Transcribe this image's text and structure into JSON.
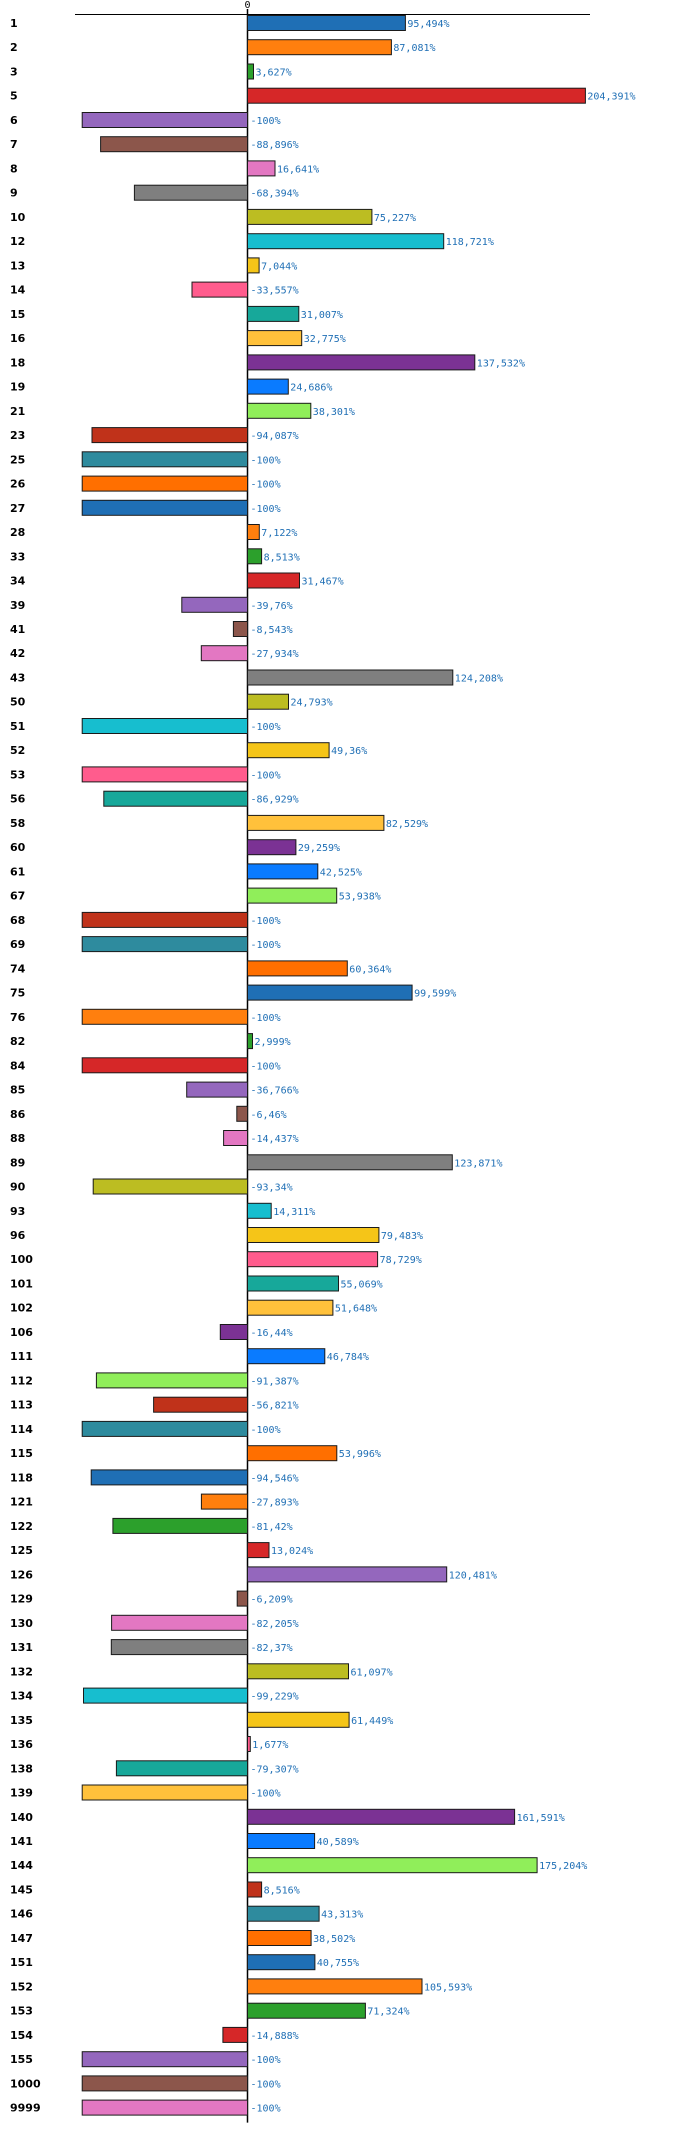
{
  "chart_data": {
    "type": "bar",
    "orientation": "horizontal",
    "title": "",
    "xlabel": "",
    "ylabel": "",
    "zero_tick_label": "0",
    "value_suffix": "%",
    "decimal_separator": ",",
    "grid": false,
    "legend": "none",
    "highlight_color": "#e8101a",
    "palette": [
      "#1f6fb5",
      "#ff7f0e",
      "#2ca02c",
      "#d62728",
      "#9467bd",
      "#8c564b",
      "#e377c2",
      "#7f7f7f",
      "#bcbd22",
      "#17becf",
      "#f5c518",
      "#ff5c8d",
      "#17a89a",
      "#ffc13b",
      "#7b3294",
      "#0a7bff",
      "#90ee5a",
      "#c0321a",
      "#2e8b9e",
      "#ff6f00"
    ],
    "categories": [
      {
        "label": "1",
        "value": 95.494,
        "color": "#1f6fb5"
      },
      {
        "label": "2",
        "value": 87.081,
        "color": "#ff7f0e"
      },
      {
        "label": "3",
        "value": 3.627,
        "color": "#2ca02c"
      },
      {
        "label": "5",
        "value": 204.391,
        "color": "#d62728"
      },
      {
        "label": "6",
        "value": -100,
        "color": "#9467bd"
      },
      {
        "label": "7",
        "value": -88.896,
        "color": "#8c564b"
      },
      {
        "label": "8",
        "value": 16.641,
        "color": "#e377c2"
      },
      {
        "label": "9",
        "value": -68.394,
        "color": "#7f7f7f"
      },
      {
        "label": "10",
        "value": 75.227,
        "color": "#bcbd22"
      },
      {
        "label": "12",
        "value": 118.721,
        "color": "#17becf"
      },
      {
        "label": "13",
        "value": 7.044,
        "color": "#f5c518"
      },
      {
        "label": "14",
        "value": -33.557,
        "color": "#ff5c8d"
      },
      {
        "label": "15",
        "value": 31.007,
        "color": "#17a89a"
      },
      {
        "label": "16",
        "value": 32.775,
        "color": "#ffc13b"
      },
      {
        "label": "18",
        "value": 137.532,
        "color": "#7b3294"
      },
      {
        "label": "19",
        "value": 24.686,
        "color": "#0a7bff"
      },
      {
        "label": "21",
        "value": 38.301,
        "color": "#90ee5a"
      },
      {
        "label": "23",
        "value": -94.087,
        "color": "#c0321a"
      },
      {
        "label": "25",
        "value": -100,
        "color": "#2e8b9e"
      },
      {
        "label": "26",
        "value": -100,
        "color": "#ff6f00"
      },
      {
        "label": "27",
        "value": -100,
        "color": "#1f6fb5"
      },
      {
        "label": "28",
        "value": 7.122,
        "color": "#ff7f0e"
      },
      {
        "label": "33",
        "value": 8.513,
        "color": "#2ca02c"
      },
      {
        "label": "34",
        "value": 31.467,
        "color": "#d62728"
      },
      {
        "label": "39",
        "value": -39.76,
        "color": "#9467bd"
      },
      {
        "label": "41",
        "value": -8.543,
        "color": "#8c564b"
      },
      {
        "label": "42",
        "value": -27.934,
        "color": "#e377c2"
      },
      {
        "label": "43",
        "value": 124.208,
        "color": "#7f7f7f"
      },
      {
        "label": "50",
        "value": 24.793,
        "color": "#bcbd22"
      },
      {
        "label": "51",
        "value": -100,
        "color": "#17becf"
      },
      {
        "label": "52",
        "value": 49.36,
        "color": "#f5c518"
      },
      {
        "label": "53",
        "value": -100,
        "color": "#ff5c8d"
      },
      {
        "label": "56",
        "value": -86.929,
        "color": "#17a89a"
      },
      {
        "label": "58",
        "value": 82.529,
        "color": "#ffc13b"
      },
      {
        "label": "60",
        "value": 29.259,
        "color": "#7b3294"
      },
      {
        "label": "61",
        "value": 42.525,
        "color": "#0a7bff"
      },
      {
        "label": "67",
        "value": 53.938,
        "color": "#90ee5a"
      },
      {
        "label": "68",
        "value": -100,
        "color": "#c0321a"
      },
      {
        "label": "69",
        "value": -100,
        "color": "#2e8b9e"
      },
      {
        "label": "74",
        "value": 60.364,
        "color": "#ff6f00"
      },
      {
        "label": "75",
        "value": 99.599,
        "color": "#1f6fb5"
      },
      {
        "label": "76",
        "value": -100,
        "color": "#ff7f0e"
      },
      {
        "label": "82",
        "value": 2.999,
        "color": "#2ca02c"
      },
      {
        "label": "84",
        "value": -100,
        "color": "#d62728"
      },
      {
        "label": "85",
        "value": -36.766,
        "color": "#9467bd"
      },
      {
        "label": "86",
        "value": -6.46,
        "color": "#8c564b"
      },
      {
        "label": "88",
        "value": -14.437,
        "color": "#e377c2"
      },
      {
        "label": "89",
        "value": 123.871,
        "color": "#7f7f7f"
      },
      {
        "label": "90",
        "value": -93.34,
        "color": "#bcbd22"
      },
      {
        "label": "93",
        "value": 14.311,
        "color": "#17becf"
      },
      {
        "label": "96",
        "value": 79.483,
        "color": "#f5c518"
      },
      {
        "label": "100",
        "value": 78.729,
        "color": "#ff5c8d"
      },
      {
        "label": "101",
        "value": 55.069,
        "color": "#17a89a"
      },
      {
        "label": "102",
        "value": 51.648,
        "color": "#ffc13b"
      },
      {
        "label": "106",
        "value": -16.44,
        "color": "#7b3294"
      },
      {
        "label": "111",
        "value": 46.784,
        "color": "#0a7bff"
      },
      {
        "label": "112",
        "value": -91.387,
        "color": "#90ee5a"
      },
      {
        "label": "113",
        "value": -56.821,
        "color": "#c0321a"
      },
      {
        "label": "114",
        "value": -100,
        "color": "#2e8b9e"
      },
      {
        "label": "115",
        "value": 53.996,
        "color": "#ff6f00"
      },
      {
        "label": "118",
        "value": -94.546,
        "color": "#1f6fb5"
      },
      {
        "label": "121",
        "value": -27.893,
        "color": "#ff7f0e"
      },
      {
        "label": "122",
        "value": -81.42,
        "color": "#2ca02c"
      },
      {
        "label": "125",
        "value": 13.024,
        "color": "#d62728"
      },
      {
        "label": "126",
        "value": 120.481,
        "color": "#9467bd"
      },
      {
        "label": "129",
        "value": -6.209,
        "color": "#8c564b"
      },
      {
        "label": "130",
        "value": -82.205,
        "color": "#e377c2"
      },
      {
        "label": "131",
        "value": -82.37,
        "color": "#7f7f7f"
      },
      {
        "label": "132",
        "value": 61.097,
        "color": "#bcbd22"
      },
      {
        "label": "134",
        "value": -99.229,
        "color": "#17becf"
      },
      {
        "label": "135",
        "value": 61.449,
        "color": "#f5c518"
      },
      {
        "label": "136",
        "value": 1.677,
        "color": "#ff5c8d"
      },
      {
        "label": "138",
        "value": -79.307,
        "color": "#17a89a"
      },
      {
        "label": "139",
        "value": -100,
        "color": "#ffc13b"
      },
      {
        "label": "140",
        "value": 161.591,
        "color": "#7b3294"
      },
      {
        "label": "141",
        "value": 40.589,
        "color": "#0a7bff"
      },
      {
        "label": "144",
        "value": 175.204,
        "color": "#90ee5a"
      },
      {
        "label": "145",
        "value": 8.516,
        "color": "#c0321a",
        "highlight": true
      },
      {
        "label": "146",
        "value": 43.313,
        "color": "#2e8b9e"
      },
      {
        "label": "147",
        "value": 38.502,
        "color": "#ff6f00"
      },
      {
        "label": "151",
        "value": 40.755,
        "color": "#1f6fb5"
      },
      {
        "label": "152",
        "value": 105.593,
        "color": "#ff7f0e"
      },
      {
        "label": "153",
        "value": 71.324,
        "color": "#2ca02c"
      },
      {
        "label": "154",
        "value": -14.888,
        "color": "#d62728"
      },
      {
        "label": "155",
        "value": -100,
        "color": "#9467bd"
      },
      {
        "label": "1000",
        "value": -100,
        "color": "#8c564b"
      },
      {
        "label": "9999",
        "value": -100,
        "color": "#e377c2"
      }
    ]
  }
}
